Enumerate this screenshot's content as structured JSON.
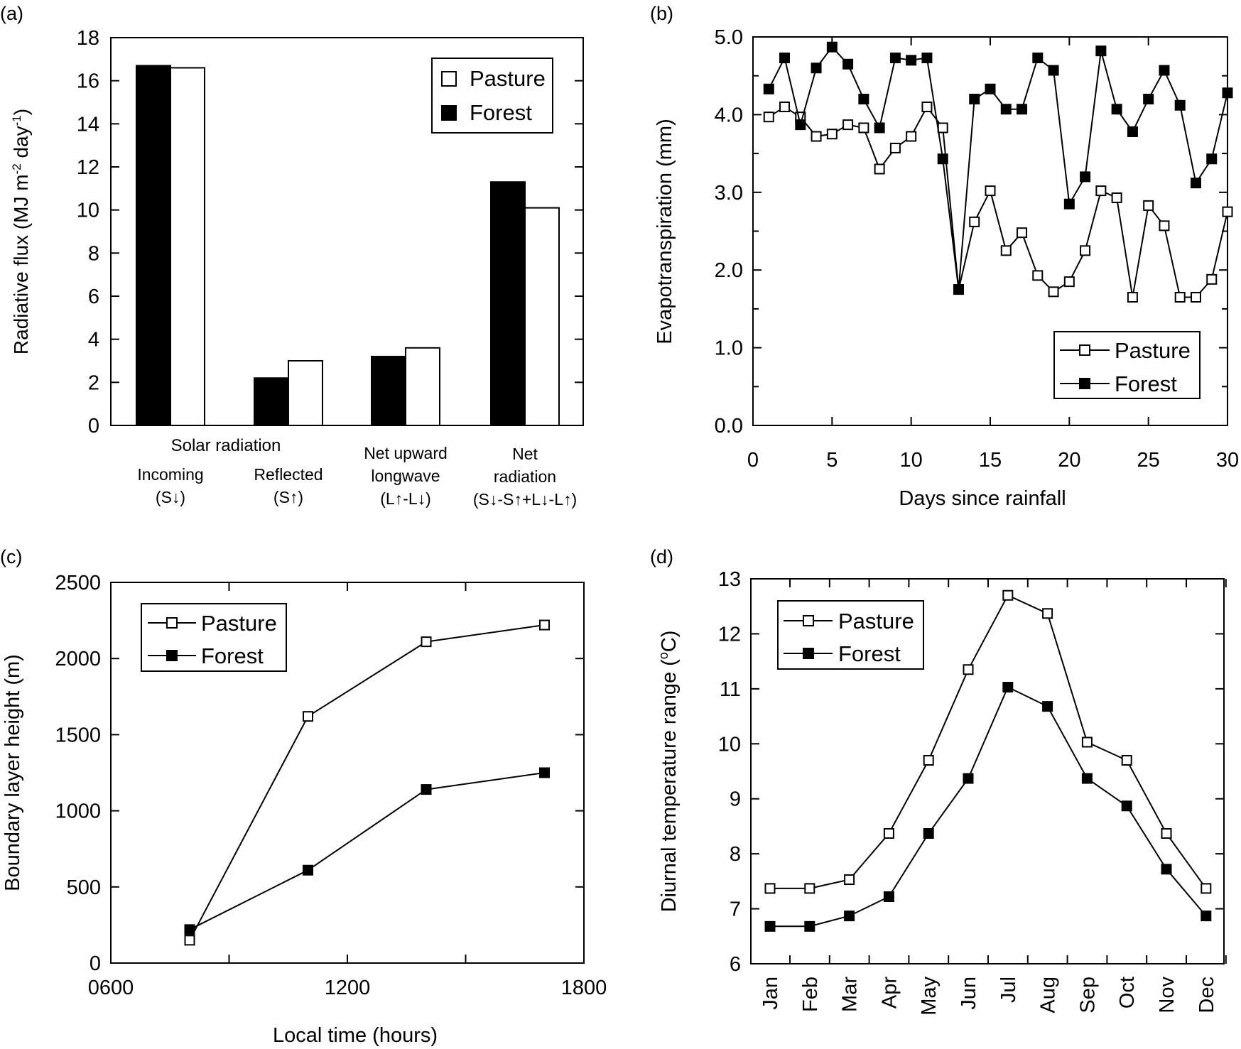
{
  "chart_data": [
    {
      "panel": "(a)",
      "type": "bar",
      "ylabel_main": "Radiative flux (MJ m",
      "ylabel_sup1": "-2",
      "ylabel_mid": " day",
      "ylabel_sup2": "-1",
      "ylabel_end": ")",
      "ylim": [
        0,
        18
      ],
      "yticks": [
        "0",
        "2",
        "4",
        "6",
        "8",
        "10",
        "12",
        "14",
        "16",
        "18"
      ],
      "group_header": "Solar radiation",
      "categories": [
        {
          "lines": [
            "Incoming",
            "(S↓)"
          ]
        },
        {
          "lines": [
            "Reflected",
            "(S↑)"
          ]
        },
        {
          "lines": [
            "Net upward",
            "longwave",
            "(L↑-L↓)"
          ]
        },
        {
          "lines": [
            "Net",
            "radiation",
            "(S↓-S↑+L↓-L↑)"
          ]
        }
      ],
      "series": [
        {
          "name": "Forest",
          "color": "#000000",
          "values": [
            16.7,
            2.2,
            3.2,
            11.3
          ]
        },
        {
          "name": "Pasture",
          "color": "#ffffff",
          "values": [
            16.6,
            3.0,
            3.6,
            10.1
          ]
        }
      ],
      "legend": [
        {
          "name": "Pasture",
          "fill": "#ffffff"
        },
        {
          "name": "Forest",
          "fill": "#000000"
        }
      ],
      "legend_position": "top-right"
    },
    {
      "panel": "(b)",
      "type": "line",
      "xlabel": "Days since rainfall",
      "ylabel": "Evapotranspiration (mm)",
      "xlim": [
        0,
        30
      ],
      "ylim": [
        0,
        5
      ],
      "xticks": [
        "0",
        "5",
        "10",
        "15",
        "20",
        "25",
        "30"
      ],
      "yticks": [
        "0.0",
        "1.0",
        "2.0",
        "3.0",
        "4.0",
        "5.0"
      ],
      "x": [
        1,
        2,
        3,
        4,
        5,
        6,
        7,
        8,
        9,
        10,
        11,
        12,
        13,
        14,
        15,
        16,
        17,
        18,
        19,
        20,
        21,
        22,
        23,
        24,
        25,
        26,
        27,
        28,
        29,
        30
      ],
      "series": [
        {
          "name": "Pasture",
          "marker_fill": "#ffffff",
          "values": [
            3.97,
            4.1,
            3.97,
            3.72,
            3.75,
            3.87,
            3.83,
            3.3,
            3.57,
            3.72,
            4.1,
            3.83,
            1.75,
            2.62,
            3.02,
            2.25,
            2.48,
            1.93,
            1.72,
            1.85,
            2.25,
            3.02,
            2.93,
            1.65,
            2.83,
            2.57,
            1.65,
            1.65,
            1.88,
            2.75
          ]
        },
        {
          "name": "Forest",
          "marker_fill": "#000000",
          "values": [
            4.33,
            4.73,
            3.87,
            4.6,
            4.87,
            4.65,
            4.2,
            3.83,
            4.73,
            4.7,
            4.73,
            3.43,
            1.75,
            4.2,
            4.33,
            4.07,
            4.07,
            4.73,
            4.57,
            2.85,
            3.2,
            4.82,
            4.07,
            3.78,
            4.2,
            4.57,
            4.12,
            3.12,
            3.43,
            4.28
          ]
        }
      ],
      "legend_position": "bottom-right"
    },
    {
      "panel": "(c)",
      "type": "line",
      "xlabel": "Local time (hours)",
      "ylabel": "Boundary layer height (m)",
      "xlim": [
        600,
        1800
      ],
      "ylim": [
        0,
        2500
      ],
      "xticks": [
        "0600",
        "1200",
        "1800"
      ],
      "yticks": [
        "0",
        "500",
        "1000",
        "1500",
        "2000",
        "2500"
      ],
      "x": [
        800,
        1100,
        1400,
        1700
      ],
      "series": [
        {
          "name": "Pasture",
          "marker_fill": "#ffffff",
          "values": [
            150,
            1620,
            2110,
            2220
          ]
        },
        {
          "name": "Forest",
          "marker_fill": "#000000",
          "values": [
            220,
            610,
            1140,
            1250
          ]
        }
      ],
      "legend_position": "top-left"
    },
    {
      "panel": "(d)",
      "type": "line",
      "ylabel_main": "Diurnal temperature range (",
      "ylabel_sup": "o",
      "ylabel_end": "C)",
      "ylim": [
        6,
        13
      ],
      "yticks": [
        "6",
        "7",
        "8",
        "9",
        "10",
        "11",
        "12",
        "13"
      ],
      "categories": [
        "Jan",
        "Feb",
        "Mar",
        "Apr",
        "May",
        "Jun",
        "Jul",
        "Aug",
        "Sep",
        "Oct",
        "Nov",
        "Dec"
      ],
      "series": [
        {
          "name": "Pasture",
          "marker_fill": "#ffffff",
          "values": [
            7.37,
            7.37,
            7.53,
            8.37,
            9.7,
            11.35,
            12.7,
            12.37,
            10.03,
            9.7,
            8.37,
            7.37
          ]
        },
        {
          "name": "Forest",
          "marker_fill": "#000000",
          "values": [
            6.68,
            6.68,
            6.87,
            7.22,
            8.37,
            9.37,
            11.03,
            10.68,
            9.37,
            8.87,
            7.72,
            6.87
          ]
        }
      ],
      "legend_position": "top-left"
    }
  ]
}
